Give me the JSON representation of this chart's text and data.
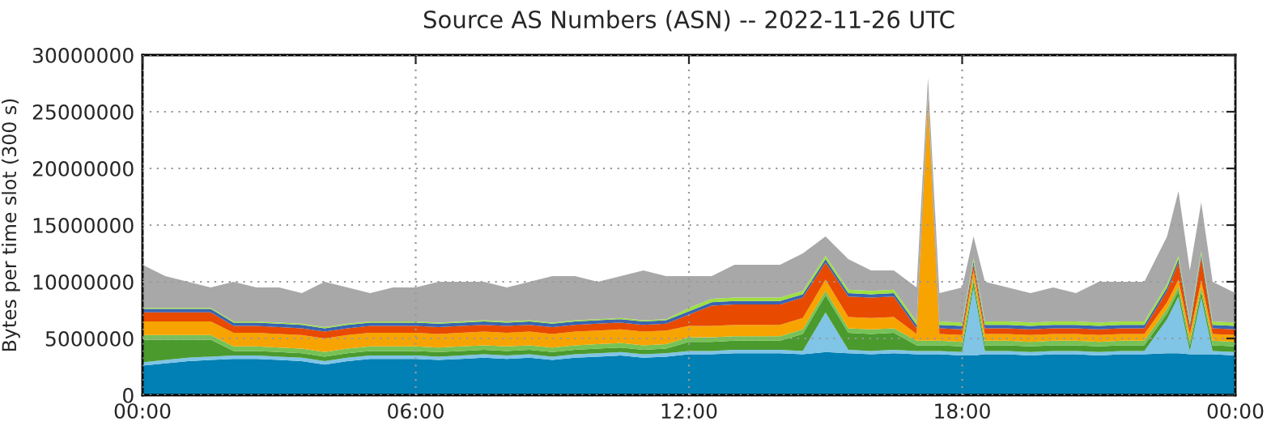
{
  "chart_data": {
    "type": "area",
    "stacked": true,
    "title": "Source AS Numbers (ASN) -- 2022-11-26 UTC",
    "ylabel": "Bytes per time slot (300 s)",
    "x": [
      0,
      0.5,
      1,
      1.5,
      2,
      2.5,
      3,
      3.5,
      4,
      4.5,
      5,
      5.5,
      6,
      6.5,
      7,
      7.5,
      8,
      8.5,
      9,
      9.5,
      10,
      10.5,
      11,
      11.5,
      12,
      12.5,
      13,
      13.5,
      14,
      14.5,
      15,
      15.5,
      16,
      16.5,
      17,
      17.25,
      17.5,
      18,
      18.25,
      18.5,
      19,
      19.5,
      20,
      20.5,
      21,
      21.5,
      22,
      22.5,
      22.75,
      23,
      23.25,
      23.5,
      24
    ],
    "xlim": [
      0,
      24
    ],
    "xticks": [
      {
        "value": 0,
        "label": "00:00"
      },
      {
        "value": 6,
        "label": "06:00"
      },
      {
        "value": 12,
        "label": "12:00"
      },
      {
        "value": 18,
        "label": "18:00"
      },
      {
        "value": 24,
        "label": "00:00"
      }
    ],
    "ylim": [
      0,
      30000000
    ],
    "yticks": [
      0,
      5000000,
      10000000,
      15000000,
      20000000,
      25000000,
      30000000
    ],
    "grid": true,
    "series": [
      {
        "color": "#0080b4",
        "values": [
          2600000,
          2800000,
          3000000,
          3100000,
          3200000,
          3200000,
          3100000,
          3000000,
          2700000,
          3000000,
          3200000,
          3200000,
          3200000,
          3100000,
          3200000,
          3300000,
          3200000,
          3300000,
          3100000,
          3300000,
          3400000,
          3500000,
          3300000,
          3400000,
          3600000,
          3600000,
          3700000,
          3700000,
          3700000,
          3600000,
          3800000,
          3700000,
          3600000,
          3700000,
          3600000,
          3600000,
          3600000,
          3500000,
          3500000,
          3600000,
          3600000,
          3500000,
          3600000,
          3600000,
          3500000,
          3600000,
          3600000,
          3700000,
          3700000,
          3600000,
          3600000,
          3600000,
          3500000
        ]
      },
      {
        "color": "#80c4e6",
        "values": [
          300000,
          300000,
          300000,
          300000,
          300000,
          300000,
          300000,
          300000,
          300000,
          300000,
          300000,
          300000,
          300000,
          300000,
          300000,
          300000,
          300000,
          300000,
          300000,
          300000,
          300000,
          300000,
          300000,
          300000,
          300000,
          300000,
          300000,
          300000,
          300000,
          300000,
          3500000,
          300000,
          300000,
          300000,
          300000,
          300000,
          300000,
          300000,
          6000000,
          300000,
          300000,
          300000,
          300000,
          300000,
          300000,
          300000,
          300000,
          3000000,
          5000000,
          300000,
          5000000,
          300000,
          300000
        ]
      },
      {
        "color": "#4a9a2e",
        "values": [
          2000000,
          1800000,
          1600000,
          1500000,
          400000,
          400000,
          400000,
          400000,
          400000,
          400000,
          400000,
          400000,
          400000,
          400000,
          400000,
          400000,
          400000,
          400000,
          400000,
          400000,
          400000,
          400000,
          400000,
          400000,
          800000,
          800000,
          800000,
          800000,
          800000,
          1500000,
          1500000,
          1500000,
          1500000,
          1500000,
          500000,
          500000,
          500000,
          500000,
          500000,
          500000,
          500000,
          500000,
          500000,
          500000,
          500000,
          500000,
          500000,
          500000,
          500000,
          500000,
          500000,
          500000,
          500000
        ]
      },
      {
        "color": "#76c257",
        "values": [
          400000,
          400000,
          400000,
          400000,
          400000,
          400000,
          400000,
          400000,
          400000,
          400000,
          400000,
          400000,
          400000,
          400000,
          400000,
          400000,
          400000,
          400000,
          400000,
          400000,
          400000,
          400000,
          400000,
          400000,
          400000,
          400000,
          400000,
          400000,
          400000,
          400000,
          400000,
          400000,
          400000,
          400000,
          400000,
          400000,
          400000,
          400000,
          400000,
          400000,
          400000,
          400000,
          400000,
          400000,
          400000,
          400000,
          400000,
          400000,
          400000,
          400000,
          400000,
          400000,
          400000
        ]
      },
      {
        "color": "#f7a400",
        "values": [
          1200000,
          1200000,
          1200000,
          1200000,
          1200000,
          1200000,
          1200000,
          1200000,
          1200000,
          1200000,
          1200000,
          1200000,
          1200000,
          1200000,
          1200000,
          1200000,
          1200000,
          1200000,
          1200000,
          1200000,
          1200000,
          1200000,
          1200000,
          1200000,
          1000000,
          1000000,
          1000000,
          1000000,
          1000000,
          1000000,
          1000000,
          1000000,
          1000000,
          1000000,
          600000,
          20600000,
          600000,
          600000,
          600000,
          600000,
          600000,
          600000,
          600000,
          600000,
          600000,
          600000,
          600000,
          600000,
          600000,
          600000,
          600000,
          600000,
          600000
        ]
      },
      {
        "color": "#e84a00",
        "values": [
          800000,
          800000,
          800000,
          800000,
          600000,
          600000,
          600000,
          600000,
          600000,
          600000,
          600000,
          600000,
          600000,
          600000,
          600000,
          600000,
          600000,
          600000,
          600000,
          600000,
          600000,
          600000,
          600000,
          600000,
          1000000,
          1800000,
          1800000,
          1800000,
          1800000,
          1800000,
          1500000,
          1800000,
          1800000,
          1800000,
          500000,
          500000,
          500000,
          500000,
          500000,
          500000,
          500000,
          500000,
          500000,
          500000,
          500000,
          500000,
          500000,
          1000000,
          1500000,
          500000,
          2000000,
          500000,
          500000
        ]
      },
      {
        "color": "#3a64b0",
        "values": [
          300000,
          300000,
          300000,
          300000,
          300000,
          300000,
          300000,
          300000,
          300000,
          300000,
          300000,
          300000,
          300000,
          300000,
          300000,
          300000,
          300000,
          300000,
          300000,
          300000,
          300000,
          300000,
          300000,
          300000,
          300000,
          300000,
          300000,
          300000,
          300000,
          300000,
          300000,
          300000,
          300000,
          300000,
          300000,
          300000,
          300000,
          300000,
          300000,
          300000,
          300000,
          300000,
          300000,
          300000,
          300000,
          300000,
          300000,
          300000,
          300000,
          300000,
          300000,
          300000,
          300000
        ]
      },
      {
        "color": "#9ee040",
        "values": [
          100000,
          100000,
          100000,
          100000,
          100000,
          100000,
          100000,
          100000,
          100000,
          100000,
          100000,
          100000,
          100000,
          100000,
          100000,
          100000,
          100000,
          100000,
          100000,
          100000,
          100000,
          100000,
          100000,
          100000,
          300000,
          300000,
          300000,
          300000,
          300000,
          300000,
          300000,
          300000,
          300000,
          300000,
          300000,
          300000,
          300000,
          300000,
          300000,
          300000,
          300000,
          300000,
          300000,
          300000,
          300000,
          300000,
          300000,
          300000,
          300000,
          300000,
          300000,
          300000,
          300000
        ]
      },
      {
        "color": "#a8a8a8",
        "values": [
          3800000,
          2800000,
          2300000,
          1800000,
          3500000,
          3000000,
          3100000,
          2700000,
          4000000,
          3200000,
          2500000,
          3000000,
          3000000,
          3600000,
          3500000,
          3400000,
          3000000,
          3400000,
          4100000,
          3900000,
          3300000,
          3700000,
          4400000,
          3800000,
          2800000,
          2000000,
          2900000,
          2900000,
          2900000,
          3300000,
          1700000,
          2700000,
          1800000,
          1700000,
          3000000,
          1500000,
          2500000,
          3100000,
          1900000,
          3500000,
          3000000,
          2600000,
          3000000,
          2500000,
          3600000,
          3500000,
          3500000,
          4200000,
          5700000,
          4500000,
          4300000,
          3500000,
          2600000
        ]
      }
    ]
  }
}
